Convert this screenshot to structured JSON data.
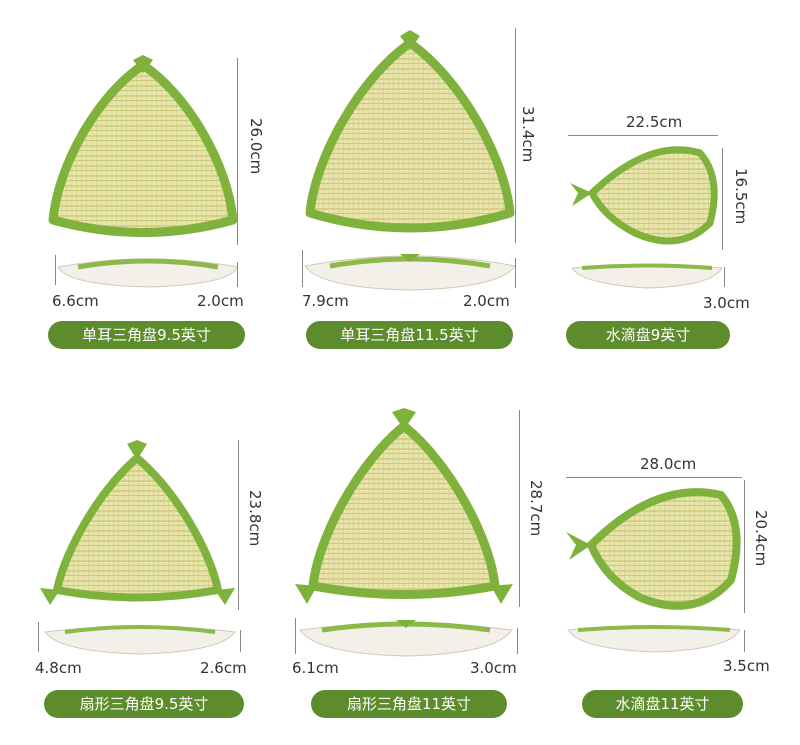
{
  "products": [
    {
      "name": "单耳三角盘9.5英寸",
      "length": "26.0cm",
      "base": "6.6cm",
      "height": "2.0cm"
    },
    {
      "name": "单耳三角盘11.5英寸",
      "length": "31.4cm",
      "base": "7.9cm",
      "height": "2.0cm"
    },
    {
      "name": "水滴盘9英寸",
      "width": "22.5cm",
      "length": "16.5cm",
      "height": "3.0cm"
    },
    {
      "name": "扇形三角盘9.5英寸",
      "length": "23.8cm",
      "base": "4.8cm",
      "height": "2.6cm"
    },
    {
      "name": "扇形三角盘11英寸",
      "length": "28.7cm",
      "base": "6.1cm",
      "height": "3.0cm"
    },
    {
      "name": "水滴盘11英寸",
      "width": "28.0cm",
      "length": "20.4cm",
      "height": "3.5cm"
    }
  ],
  "colors": {
    "label_bg": "#5d8c2c",
    "rim": "#8db84a",
    "weave": "#e9e2a6"
  }
}
